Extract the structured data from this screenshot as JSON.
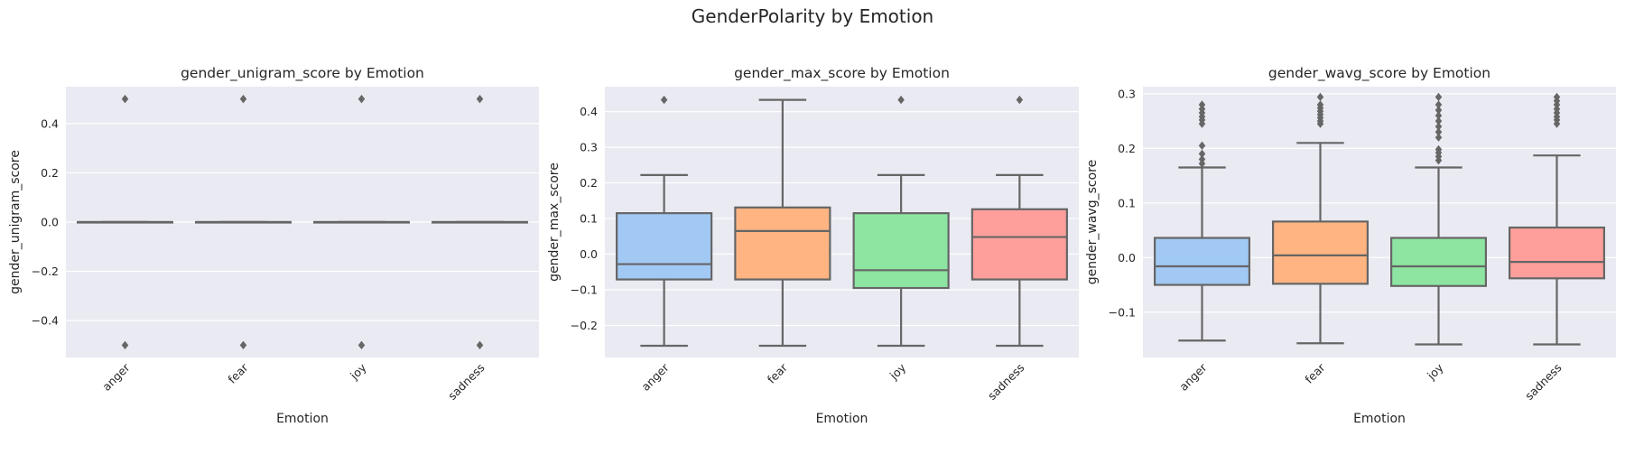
{
  "figure_title": "GenderPolarity by Emotion",
  "colors": {
    "panel_bg": "#EAEAF2",
    "grid": "#FFFFFF",
    "box_edge": "#666666",
    "text": "#262626",
    "palette": [
      "#A1C9F4",
      "#FFB482",
      "#8DE5A1",
      "#FF9F9B"
    ]
  },
  "chart_data": [
    {
      "type": "box",
      "title": "gender_unigram_score by Emotion",
      "xlabel": "Emotion",
      "ylabel": "gender_unigram_score",
      "ylim": [
        -0.55,
        0.55
      ],
      "yticks": [
        -0.4,
        -0.2,
        0.0,
        0.2,
        0.4
      ],
      "ytick_labels": [
        "−0.4",
        "−0.2",
        "0.0",
        "0.2",
        "0.4"
      ],
      "categories": [
        "anger",
        "fear",
        "joy",
        "sadness"
      ],
      "boxes": [
        {
          "whislo": 0,
          "q1": 0,
          "med": 0,
          "q3": 0,
          "whishi": 0,
          "fliers": [
            -0.5,
            0.5
          ]
        },
        {
          "whislo": 0,
          "q1": 0,
          "med": 0,
          "q3": 0,
          "whishi": 0,
          "fliers": [
            -0.5,
            0.5
          ]
        },
        {
          "whislo": 0,
          "q1": 0,
          "med": 0,
          "q3": 0,
          "whishi": 0,
          "fliers": [
            -0.5,
            0.5
          ]
        },
        {
          "whislo": 0,
          "q1": 0,
          "med": 0,
          "q3": 0,
          "whishi": 0,
          "fliers": [
            -0.5,
            0.5
          ]
        }
      ]
    },
    {
      "type": "box",
      "title": "gender_max_score by Emotion",
      "xlabel": "Emotion",
      "ylabel": "gender_max_score",
      "ylim": [
        -0.29,
        0.47
      ],
      "yticks": [
        -0.2,
        -0.1,
        0.0,
        0.1,
        0.2,
        0.3,
        0.4
      ],
      "ytick_labels": [
        "−0.2",
        "−0.1",
        "0.0",
        "0.1",
        "0.2",
        "0.3",
        "0.4"
      ],
      "categories": [
        "anger",
        "fear",
        "joy",
        "sadness"
      ],
      "boxes": [
        {
          "whislo": -0.257,
          "q1": -0.071,
          "med": -0.028,
          "q3": 0.115,
          "whishi": 0.222,
          "fliers": [
            0.433
          ]
        },
        {
          "whislo": -0.257,
          "q1": -0.071,
          "med": 0.065,
          "q3": 0.131,
          "whishi": 0.433,
          "fliers": []
        },
        {
          "whislo": -0.257,
          "q1": -0.095,
          "med": -0.045,
          "q3": 0.115,
          "whishi": 0.222,
          "fliers": [
            0.433
          ]
        },
        {
          "whislo": -0.257,
          "q1": -0.071,
          "med": 0.048,
          "q3": 0.126,
          "whishi": 0.222,
          "fliers": [
            0.433
          ]
        }
      ]
    },
    {
      "type": "box",
      "title": "gender_wavg_score by Emotion",
      "xlabel": "Emotion",
      "ylabel": "gender_wavg_score",
      "ylim": [
        -0.183,
        0.313
      ],
      "yticks": [
        -0.1,
        0.0,
        0.1,
        0.2,
        0.3
      ],
      "ytick_labels": [
        "−0.1",
        "0.0",
        "0.1",
        "0.2",
        "0.3"
      ],
      "categories": [
        "anger",
        "fear",
        "joy",
        "sadness"
      ],
      "boxes": [
        {
          "whislo": -0.152,
          "q1": -0.05,
          "med": -0.016,
          "q3": 0.036,
          "whishi": 0.165,
          "fliers": [
            0.172,
            0.18,
            0.19,
            0.205,
            0.245,
            0.252,
            0.258,
            0.265,
            0.272,
            0.28
          ]
        },
        {
          "whislo": -0.157,
          "q1": -0.048,
          "med": 0.004,
          "q3": 0.066,
          "whishi": 0.21,
          "fliers": [
            0.245,
            0.25,
            0.256,
            0.262,
            0.268,
            0.274,
            0.28,
            0.294
          ]
        },
        {
          "whislo": -0.159,
          "q1": -0.052,
          "med": -0.016,
          "q3": 0.036,
          "whishi": 0.165,
          "fliers": [
            0.178,
            0.185,
            0.192,
            0.198,
            0.22,
            0.23,
            0.24,
            0.25,
            0.26,
            0.27,
            0.28,
            0.294
          ]
        },
        {
          "whislo": -0.159,
          "q1": -0.038,
          "med": -0.008,
          "q3": 0.055,
          "whishi": 0.187,
          "fliers": [
            0.245,
            0.252,
            0.258,
            0.265,
            0.272,
            0.28,
            0.287,
            0.294
          ]
        }
      ]
    }
  ]
}
